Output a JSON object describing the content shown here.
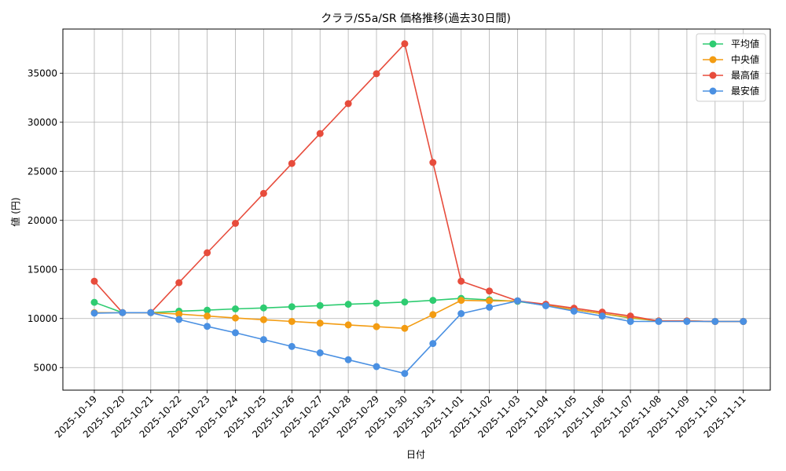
{
  "chart_data": {
    "type": "line",
    "title": "クララ/S5a/SR 価格推移(過去30日間)",
    "xlabel": "日付",
    "ylabel": "値 (円)",
    "x": [
      "2025-10-19",
      "2025-10-20",
      "2025-10-21",
      "2025-10-22",
      "2025-10-23",
      "2025-10-24",
      "2025-10-25",
      "2025-10-26",
      "2025-10-27",
      "2025-10-28",
      "2025-10-29",
      "2025-10-30",
      "2025-10-31",
      "2025-11-01",
      "2025-11-02",
      "2025-11-03",
      "2025-11-04",
      "2025-11-05",
      "2025-11-06",
      "2025-11-07",
      "2025-11-08",
      "2025-11-09",
      "2025-11-10",
      "2025-11-11"
    ],
    "yticks": [
      5000,
      10000,
      15000,
      20000,
      25000,
      30000,
      35000
    ],
    "ylim": [
      2700,
      39500
    ],
    "grid": true,
    "legend_position": "top-right",
    "series": [
      {
        "name": "平均値",
        "color": "#2ecc71",
        "values": [
          11650,
          10600,
          10600,
          10750,
          10850,
          10980,
          11080,
          11200,
          11320,
          11450,
          11560,
          11680,
          11850,
          12050,
          11900,
          11750,
          11350,
          10900,
          10500,
          10050,
          9750,
          9750,
          9700,
          9700
        ]
      },
      {
        "name": "中央値",
        "color": "#f39c12",
        "values": [
          10600,
          10600,
          10600,
          10450,
          10250,
          10050,
          9880,
          9700,
          9530,
          9350,
          9170,
          9000,
          10400,
          11850,
          11800,
          11800,
          11350,
          10900,
          10500,
          10100,
          9750,
          9750,
          9700,
          9700
        ]
      },
      {
        "name": "最高値",
        "color": "#e74c3c",
        "values": [
          13800,
          10600,
          10600,
          13650,
          16700,
          19700,
          22750,
          25800,
          28850,
          31900,
          34950,
          38000,
          25900,
          13800,
          12800,
          11800,
          11450,
          11050,
          10650,
          10250,
          9750,
          9750,
          9700,
          9700
        ]
      },
      {
        "name": "最安値",
        "color": "#4a90e2",
        "values": [
          10550,
          10600,
          10600,
          9900,
          9200,
          8550,
          7850,
          7150,
          6500,
          5800,
          5100,
          4400,
          7450,
          10500,
          11150,
          11800,
          11300,
          10750,
          10250,
          9700,
          9700,
          9700,
          9700,
          9700
        ]
      }
    ]
  }
}
